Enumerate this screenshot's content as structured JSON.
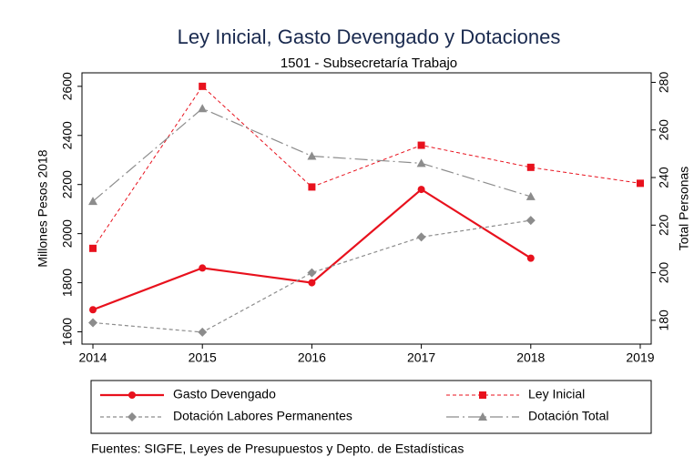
{
  "chart_data": {
    "type": "line",
    "title": "Ley Inicial, Gasto Devengado y Dotaciones",
    "subtitle": "1501 - Subsecretaría Trabajo",
    "ylabel": "Millones Pesos 2018",
    "y2label": "Total Personas",
    "source": "Fuentes: SIGFE, Leyes de Presupuestos y Depto. de Estadísticas",
    "x": [
      2014,
      2015,
      2016,
      2017,
      2018,
      2019
    ],
    "xlim": [
      2013.9,
      2019.1
    ],
    "xticks": [
      2014,
      2015,
      2016,
      2017,
      2018,
      2019
    ],
    "ylim": [
      1550,
      2655
    ],
    "yticks": [
      1600,
      1800,
      2000,
      2200,
      2400,
      2600
    ],
    "y2lim": [
      170,
      284
    ],
    "y2ticks": [
      180,
      200,
      220,
      240,
      260,
      280
    ],
    "grid": false,
    "legend": "bottom",
    "series": [
      {
        "name": "Gasto Devengado",
        "color": "#e8111d",
        "marker": "circle",
        "dash": "solid",
        "width": 2.2,
        "values": [
          1690,
          1860,
          1800,
          2180,
          1900,
          null
        ]
      },
      {
        "name": "Ley Inicial",
        "color": "#e8111d",
        "marker": "square",
        "dash": "short",
        "width": 1,
        "values": [
          1940,
          2600,
          2190,
          2360,
          2270,
          2205
        ]
      },
      {
        "name": "Dotación Labores Permanentes",
        "color": "#8c8c8c",
        "marker": "diamond",
        "dash": "short",
        "width": 1.2,
        "axis": "y2",
        "values": [
          179,
          175,
          200,
          215,
          222,
          null
        ]
      },
      {
        "name": "Dotación Total",
        "color": "#8c8c8c",
        "marker": "triangle",
        "dash": "longdot",
        "width": 1.2,
        "axis": "y2",
        "values": [
          230,
          269,
          249,
          246,
          232,
          null
        ]
      }
    ]
  }
}
